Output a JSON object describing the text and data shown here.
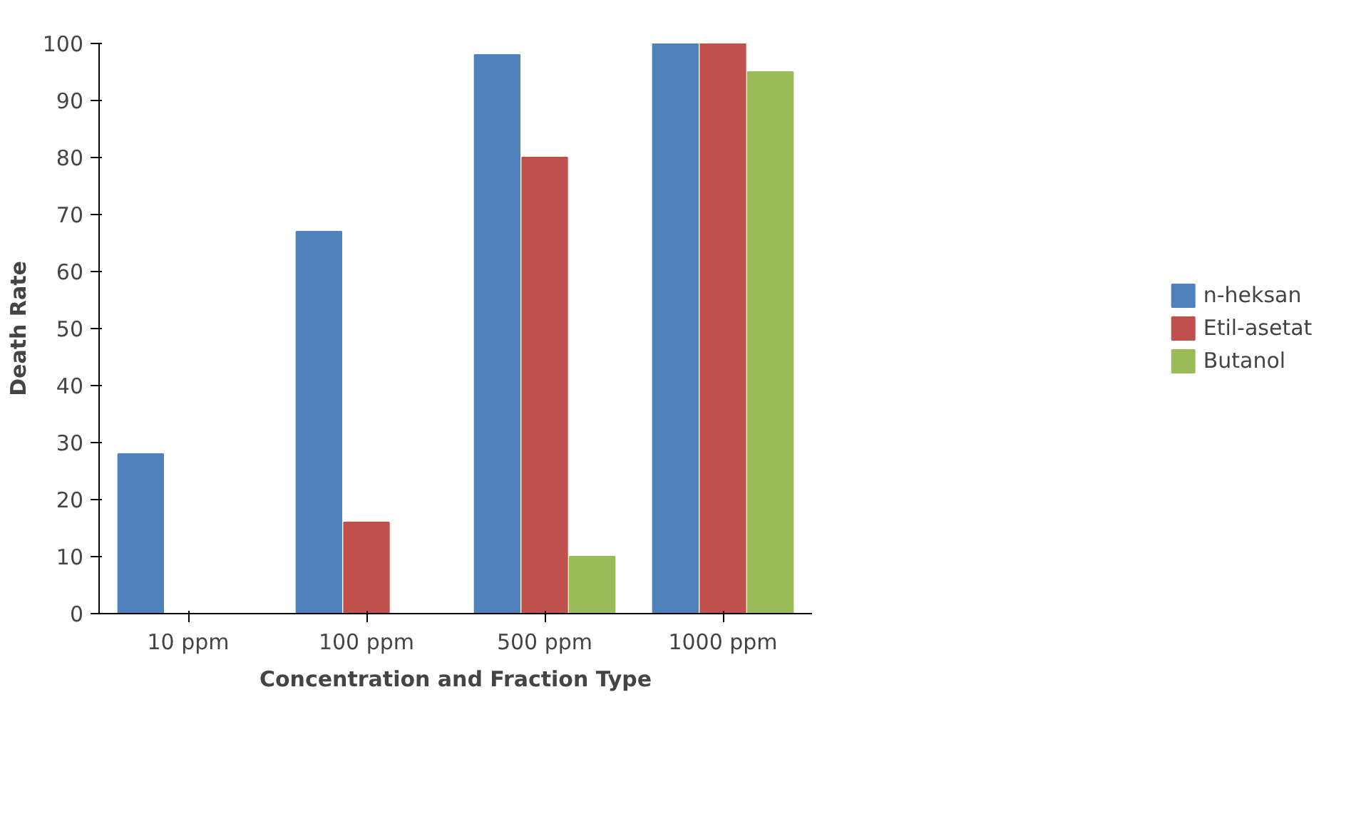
{
  "chart_data": {
    "type": "bar",
    "xlabel": "Concentration and Fraction Type",
    "ylabel": "Death Rate",
    "categories": [
      "10 ppm",
      "100 ppm",
      "500 ppm",
      "1000 ppm"
    ],
    "series": [
      {
        "name": "n-heksan",
        "color": "#4f81bd",
        "values": [
          28,
          67,
          98,
          100
        ]
      },
      {
        "name": "Etil-asetat",
        "color": "#c0504d",
        "values": [
          0,
          16,
          80,
          100
        ]
      },
      {
        "name": "Butanol",
        "color": "#9bbb59",
        "values": [
          0,
          0,
          10,
          95
        ]
      }
    ],
    "ylim": [
      0,
      100
    ],
    "yticks": [
      0,
      10,
      20,
      30,
      40,
      50,
      60,
      70,
      80,
      90,
      100
    ],
    "grid": false,
    "legend": "right"
  }
}
